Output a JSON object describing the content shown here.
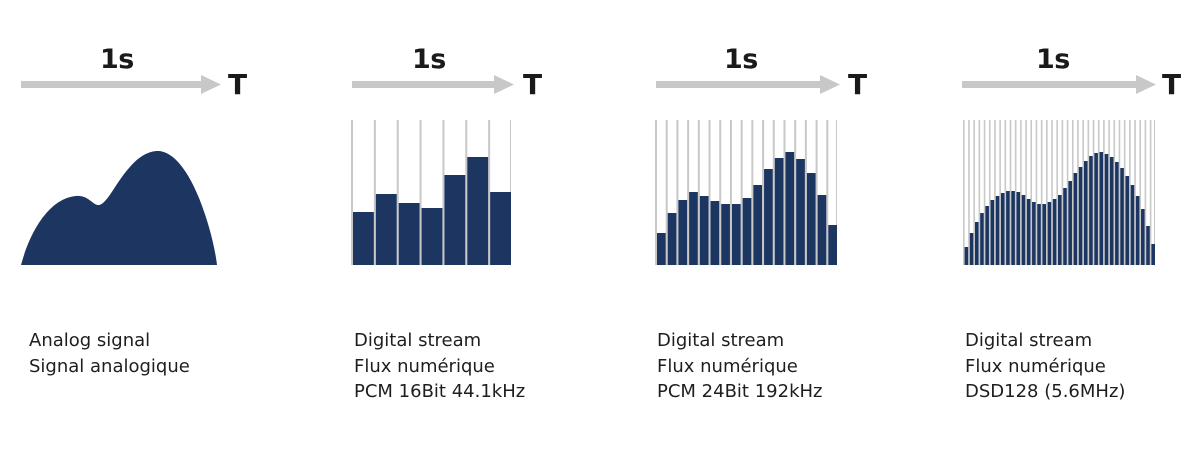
{
  "colors": {
    "signal": "#1c3661",
    "arrow": "#c8c8c8",
    "gridline": "#c8c8c8",
    "text": "#1e1e1e"
  },
  "panels": [
    {
      "id": "analog",
      "time_label": "1s",
      "axis_label": "T",
      "caption": [
        "Analog signal",
        "Signal analogique"
      ]
    },
    {
      "id": "pcm16",
      "time_label": "1s",
      "axis_label": "T",
      "caption": [
        "Digital stream",
        "Flux numérique",
        "PCM 16Bit 44.1kHz"
      ]
    },
    {
      "id": "pcm24",
      "time_label": "1s",
      "axis_label": "T",
      "caption": [
        "Digital stream",
        "Flux numérique",
        "PCM 24Bit 192kHz"
      ]
    },
    {
      "id": "dsd128",
      "time_label": "1s",
      "axis_label": "T",
      "caption": [
        "Digital stream",
        "Flux numérique",
        "DSD128 (5.6MHz)"
      ]
    }
  ],
  "chart_data": [
    {
      "type": "area",
      "title": "Analog signal",
      "description": "Continuous waveform with a smaller first peak and a taller second peak",
      "x": [
        0,
        0.1,
        0.2,
        0.3,
        0.4,
        0.5,
        0.6,
        0.7,
        0.8,
        0.9,
        1.0
      ],
      "values": [
        0,
        45,
        70,
        60,
        62,
        90,
        113,
        100,
        70,
        35,
        0
      ]
    },
    {
      "type": "bar",
      "title": "PCM 16Bit 44.1kHz",
      "categories": [
        1,
        2,
        3,
        4,
        5,
        6,
        7
      ],
      "values": [
        53,
        71,
        62,
        57,
        90,
        108,
        73
      ]
    },
    {
      "type": "bar",
      "title": "PCM 24Bit 192kHz",
      "categories": [
        1,
        2,
        3,
        4,
        5,
        6,
        7,
        8,
        9,
        10,
        11,
        12,
        13,
        14,
        15,
        16,
        17
      ],
      "values": [
        32,
        52,
        65,
        73,
        69,
        64,
        61,
        61,
        67,
        80,
        96,
        107,
        113,
        106,
        92,
        70,
        40
      ]
    },
    {
      "type": "bar",
      "title": "DSD128 (5.6MHz)",
      "categories": [
        1,
        2,
        3,
        4,
        5,
        6,
        7,
        8,
        9,
        10,
        11,
        12,
        13,
        14,
        15,
        16,
        17,
        18,
        19,
        20,
        21,
        22,
        23,
        24,
        25,
        26,
        27,
        28,
        29,
        30,
        31,
        32,
        33,
        34,
        35,
        36,
        37
      ],
      "values": [
        18,
        32,
        43,
        52,
        59,
        65,
        69,
        72,
        74,
        74,
        73,
        70,
        66,
        63,
        61,
        61,
        63,
        66,
        70,
        77,
        84,
        92,
        98,
        104,
        109,
        112,
        113,
        111,
        108,
        103,
        97,
        89,
        80,
        69,
        56,
        39,
        21
      ]
    }
  ]
}
